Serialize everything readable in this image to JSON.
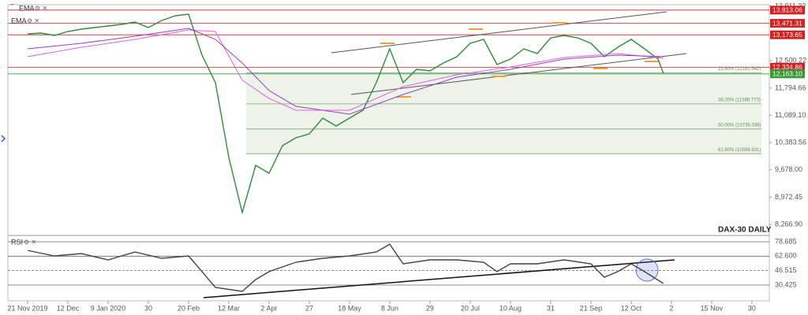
{
  "chart_data": [
    {
      "type": "line",
      "title": "DAX-30 DAILY",
      "xlim": [
        -7.35,
        276.5
      ],
      "xticks": [
        {
          "value": 0,
          "label": "21 Nov 2019"
        },
        {
          "value": 15,
          "label": "12 Dec"
        },
        {
          "value": 30,
          "label": "9 Jan 2020"
        },
        {
          "value": 45,
          "label": "30"
        },
        {
          "value": 60,
          "label": "20 Feb"
        },
        {
          "value": 75,
          "label": "12 Mar"
        },
        {
          "value": 90,
          "label": "2 Apr"
        },
        {
          "value": 105,
          "label": "27"
        },
        {
          "value": 120,
          "label": "18 May"
        },
        {
          "value": 135,
          "label": "8 Jun"
        },
        {
          "value": 150,
          "label": "29"
        },
        {
          "value": 165,
          "label": "20 Jul"
        },
        {
          "value": 180,
          "label": "10 Aug"
        },
        {
          "value": 195,
          "label": "31"
        },
        {
          "value": 210,
          "label": "21 Sep"
        },
        {
          "value": 225,
          "label": "12 Oct"
        },
        {
          "value": 240,
          "label": "2"
        },
        {
          "value": 255,
          "label": "15 Nov"
        },
        {
          "value": 270,
          "label": "30"
        }
      ],
      "ylim": [
        8002.5,
        13952
      ],
      "yticks": [
        {
          "value": 13911.32,
          "label": "13,911.32"
        },
        {
          "value": 12500.22,
          "label": "12,500.22"
        },
        {
          "value": 11794.66,
          "label": "11,794.66"
        },
        {
          "value": 11089.1,
          "label": "11,089.10"
        },
        {
          "value": 10383.56,
          "label": "10,383.56"
        },
        {
          "value": 9678,
          "label": "9,678.00"
        },
        {
          "value": 8972.45,
          "label": "8,972.45"
        },
        {
          "value": 8266.9,
          "label": "8,266.90"
        }
      ],
      "series": [
        {
          "color": "#2e8b3a",
          "x": [
            0,
            5,
            10,
            15,
            20,
            25,
            30,
            35,
            40,
            45,
            50,
            55,
            60,
            65,
            70,
            75,
            80,
            85,
            90,
            95,
            100,
            105,
            110,
            115,
            120,
            125,
            130,
            135,
            140,
            145,
            150,
            155,
            160,
            165,
            170,
            175,
            180,
            185,
            190,
            195,
            200,
            205,
            210,
            215,
            220,
            225,
            230,
            235,
            237
          ],
          "values": [
            13198,
            13218,
            13157,
            13259,
            13320,
            13361,
            13402,
            13443,
            13504,
            13361,
            13545,
            13667,
            13708,
            12648,
            11935,
            10000,
            8573,
            9795,
            9591,
            10305,
            10508,
            10610,
            11018,
            10814,
            11018,
            11221,
            11935,
            12811,
            11935,
            12281,
            12240,
            12444,
            12607,
            12954,
            13055,
            12403,
            12546,
            12811,
            12689,
            13096,
            13157,
            13096,
            12954,
            12607,
            12852,
            13055,
            12811,
            12546,
            12179
          ]
        },
        {
          "name": "EMA",
          "color": "#e060e0",
          "x": [
            0,
            20,
            40,
            60,
            70,
            80,
            90,
            100,
            120,
            140,
            160,
            180,
            200,
            220,
            237
          ],
          "values": [
            12607,
            12852,
            13055,
            13300,
            13259,
            11999,
            11527,
            11221,
            11221,
            11833,
            12138,
            12342,
            12587,
            12689,
            12566
          ]
        },
        {
          "name": "EMA",
          "color": "#9040c0",
          "x": [
            0,
            20,
            40,
            60,
            70,
            80,
            90,
            100,
            120,
            140,
            160,
            180,
            200,
            220,
            237
          ],
          "values": [
            12811,
            12954,
            13137,
            13341,
            13055,
            12444,
            11731,
            11323,
            11120,
            11629,
            12077,
            12281,
            12546,
            12648,
            12607
          ]
        }
      ],
      "levels": [
        {
          "value": 13813.06,
          "label": "13,813.06",
          "color": "#d42020"
        },
        {
          "value": 13471.31,
          "label": "13,471.31",
          "color": "#d42020"
        },
        {
          "value": 13173.65,
          "label": "13,173.65",
          "color": "#d42020"
        },
        {
          "value": 12334.86,
          "label": "12,334.86",
          "color": "#d42020"
        },
        {
          "value": 12163.1,
          "label": "12,163.10",
          "color": "#3a9a3a"
        }
      ],
      "fib_levels": [
        {
          "value": 12191.542,
          "label": "23.60% (12191.542)"
        },
        {
          "value": 11386.77,
          "label": "38.20% (11386.770)"
        },
        {
          "value": 10736.338,
          "label": "50.00% (10736.338)"
        },
        {
          "value": 10096.931,
          "label": "61.80% (10096.931)"
        }
      ]
    },
    {
      "type": "line",
      "title": "RSI",
      "ylim": [
        12.87,
        84.83
      ],
      "yticks": [
        78.685,
        {
          "value": 62.6,
          "label": "62.600"
        },
        46.515,
        30.425
      ],
      "series": [
        {
          "color": "#444444",
          "x": [
            0,
            10,
            20,
            30,
            40,
            50,
            60,
            65,
            70,
            80,
            85,
            90,
            100,
            110,
            120,
            130,
            135,
            140,
            150,
            160,
            170,
            175,
            180,
            190,
            200,
            210,
            215,
            220,
            225,
            230,
            237
          ],
          "values": [
            69.0,
            62.9,
            65.5,
            58.5,
            67.3,
            60.3,
            62.9,
            45.4,
            27.8,
            23.4,
            36.6,
            45.4,
            55.9,
            60.3,
            62.9,
            67.3,
            76.0,
            54.1,
            58.5,
            58.5,
            55.9,
            45.4,
            54.1,
            54.1,
            58.5,
            54.1,
            39.2,
            45.4,
            54.1,
            45.4,
            32.2
          ]
        }
      ]
    }
  ]
}
